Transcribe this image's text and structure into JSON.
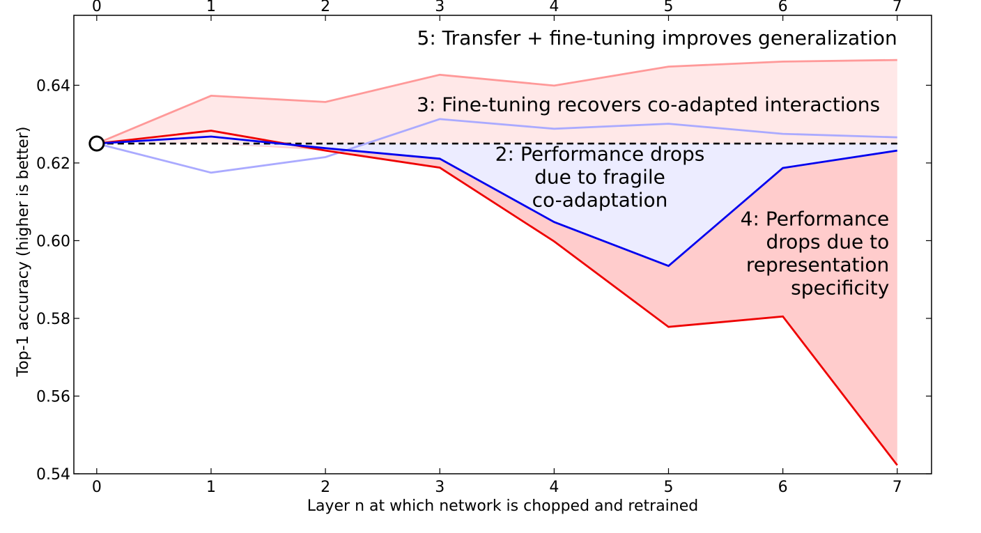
{
  "chart_data": {
    "type": "line",
    "xlabel": "Layer n at which network is chopped and retrained",
    "ylabel": "Top-1 accuracy (higher is better)",
    "x": [
      0,
      1,
      2,
      3,
      4,
      5,
      6,
      7
    ],
    "xticks": [
      "0",
      "1",
      "2",
      "3",
      "4",
      "5",
      "6",
      "7"
    ],
    "yticks": [
      "0.54",
      "0.56",
      "0.58",
      "0.60",
      "0.62",
      "0.64"
    ],
    "xlim": [
      -0.2,
      7.3
    ],
    "ylim": [
      0.54,
      0.658
    ],
    "baseline": 0.625,
    "base_point": {
      "x": 0,
      "y": 0.625
    },
    "series": [
      {
        "key": "transfer_ft",
        "color": "#ff9999",
        "values": [
          0.625,
          0.6373,
          0.6357,
          0.6427,
          0.6399,
          0.6448,
          0.6461,
          0.6465
        ]
      },
      {
        "key": "selffer_ft",
        "color": "#aaaaff",
        "values": [
          0.625,
          0.6175,
          0.6215,
          0.6313,
          0.6288,
          0.6301,
          0.6275,
          0.6266
        ]
      },
      {
        "key": "selffer",
        "color": "#0000ee",
        "values": [
          0.625,
          0.6268,
          0.6238,
          0.6211,
          0.6048,
          0.5935,
          0.6187,
          0.6232
        ]
      },
      {
        "key": "transfer",
        "color": "#ee0000",
        "values": [
          0.625,
          0.6283,
          0.6232,
          0.6188,
          0.5998,
          0.5778,
          0.5805,
          0.5422
        ]
      }
    ],
    "annotations": [
      {
        "lines": [
          "5: Transfer + fine-tuning improves generalization"
        ],
        "x": 7.0,
        "y": 0.6505,
        "anchor": "end"
      },
      {
        "lines": [
          "3: Fine-tuning recovers co-adapted interactions"
        ],
        "x": 6.85,
        "y": 0.6333,
        "anchor": "end"
      },
      {
        "lines": [
          "2: Performance drops",
          "due to fragile",
          "co-adaptation"
        ],
        "x": 4.4,
        "y": 0.6206,
        "anchor": "middle"
      },
      {
        "lines": [
          "4: Performance",
          "drops due to",
          "representation",
          "specificity"
        ],
        "x": 6.93,
        "y": 0.6039,
        "anchor": "end"
      }
    ]
  }
}
